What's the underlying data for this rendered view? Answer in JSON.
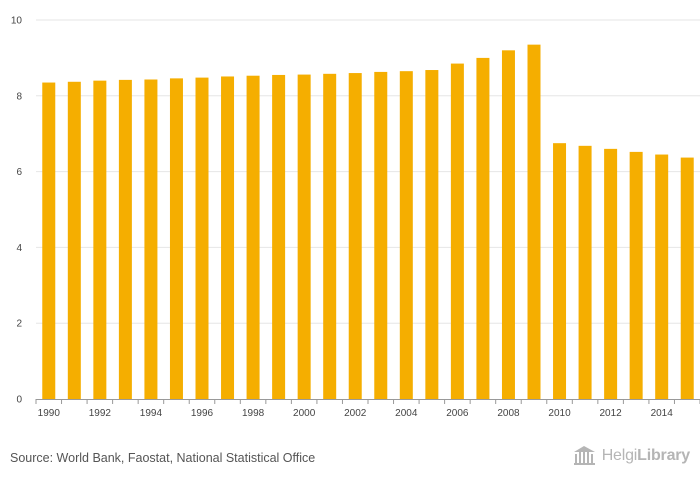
{
  "chart_data": {
    "type": "bar",
    "categories": [
      "1990",
      "1991",
      "1992",
      "1993",
      "1994",
      "1995",
      "1996",
      "1997",
      "1998",
      "1999",
      "2000",
      "2001",
      "2002",
      "2003",
      "2004",
      "2005",
      "2006",
      "2007",
      "2008",
      "2009",
      "2010",
      "2011",
      "2012",
      "2013",
      "2014",
      "2015"
    ],
    "values": [
      8.35,
      8.37,
      8.4,
      8.42,
      8.43,
      8.46,
      8.48,
      8.51,
      8.53,
      8.55,
      8.56,
      8.58,
      8.6,
      8.63,
      8.65,
      8.68,
      8.85,
      9.0,
      9.2,
      9.35,
      6.75,
      6.68,
      6.6,
      6.52,
      6.45,
      6.37
    ],
    "x_tick_labels": [
      "1990",
      "1992",
      "1994",
      "1996",
      "1998",
      "2000",
      "2002",
      "2004",
      "2006",
      "2008",
      "2010",
      "2012",
      "2014"
    ],
    "y_ticks": [
      "0",
      "2",
      "4",
      "6",
      "8",
      "10"
    ],
    "ylim": [
      0,
      10
    ],
    "title": "",
    "xlabel": "",
    "ylabel": "",
    "grid": true,
    "legend": "none",
    "bar_color": "#f5ae00"
  },
  "footer": {
    "source_text": "Source: World Bank, Faostat, National Statistical Office",
    "logo_light": "Helgi",
    "logo_bold": "Library"
  },
  "colors": {
    "grid": "#e6e6e6",
    "axis": "#999999",
    "logo": "#b5b5b5"
  }
}
